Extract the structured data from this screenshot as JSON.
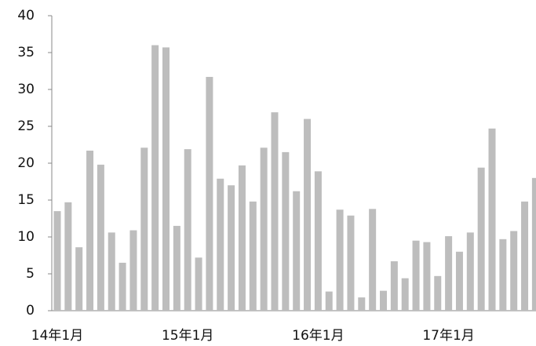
{
  "chart_data": {
    "type": "bar",
    "categories": [
      "14年1月",
      null,
      null,
      null,
      null,
      null,
      null,
      null,
      null,
      null,
      null,
      null,
      "15年1月",
      null,
      null,
      null,
      null,
      null,
      null,
      null,
      null,
      null,
      null,
      null,
      "16年1月",
      null,
      null,
      null,
      null,
      null,
      null,
      null,
      null,
      null,
      null,
      null,
      "17年1月",
      null,
      null,
      null,
      null,
      null,
      null,
      null,
      null
    ],
    "values": [
      13.5,
      14.7,
      8.6,
      21.7,
      19.8,
      10.6,
      6.5,
      10.9,
      22.1,
      36.0,
      35.7,
      11.5,
      21.9,
      7.2,
      31.7,
      17.9,
      17.0,
      19.7,
      14.8,
      22.1,
      26.9,
      21.5,
      16.2,
      26.0,
      18.9,
      2.6,
      13.7,
      12.9,
      1.8,
      13.8,
      2.7,
      6.7,
      4.4,
      9.5,
      9.3,
      4.7,
      10.1,
      8.0,
      10.6,
      19.4,
      24.7,
      9.7,
      10.8,
      14.8,
      18.0
    ],
    "color": "#bdbdbd",
    "ylim": [
      0,
      40
    ],
    "yticks": [
      0,
      5,
      10,
      15,
      20,
      25,
      30,
      35,
      40
    ],
    "grid": false
  }
}
